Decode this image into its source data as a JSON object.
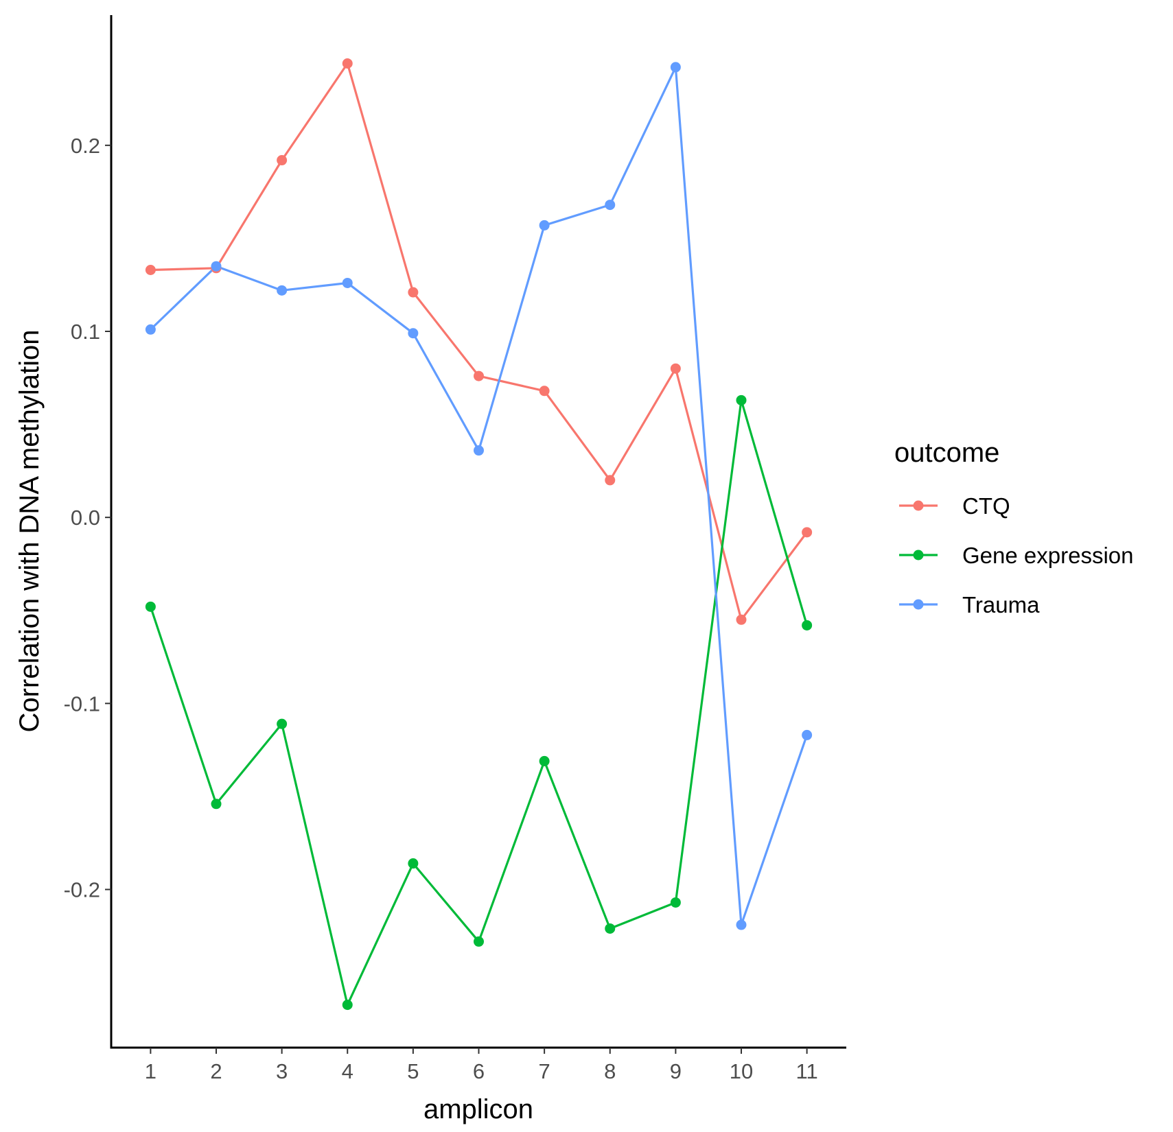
{
  "chart_data": {
    "type": "line",
    "xlabel": "amplicon",
    "ylabel": "Correlation with DNA methylation",
    "x": [
      1,
      2,
      3,
      4,
      5,
      6,
      7,
      8,
      9,
      10,
      11
    ],
    "x_tick_labels": [
      "1",
      "2",
      "3",
      "4",
      "5",
      "6",
      "7",
      "8",
      "9",
      "10",
      "11"
    ],
    "y_ticks": [
      -0.2,
      -0.1,
      0.0,
      0.1,
      0.2
    ],
    "y_tick_labels": [
      "-0.2",
      "-0.1",
      "0.0",
      "0.1",
      "0.2"
    ],
    "xlim": [
      0.4,
      11.6
    ],
    "ylim": [
      -0.285,
      0.27
    ],
    "grid": false,
    "legend": {
      "title": "outcome",
      "position": "right"
    },
    "series": [
      {
        "name": "CTQ",
        "color": "#F8766D",
        "values": [
          0.133,
          0.134,
          0.192,
          0.244,
          0.121,
          0.076,
          0.068,
          0.02,
          0.08,
          -0.055,
          -0.008
        ]
      },
      {
        "name": "Gene expression",
        "color": "#00BA38",
        "values": [
          -0.048,
          -0.154,
          -0.111,
          -0.262,
          -0.186,
          -0.228,
          -0.131,
          -0.221,
          -0.207,
          0.063,
          -0.058
        ]
      },
      {
        "name": "Trauma",
        "color": "#619CFF",
        "values": [
          0.101,
          0.135,
          0.122,
          0.126,
          0.099,
          0.036,
          0.157,
          0.168,
          0.242,
          -0.219,
          -0.117
        ]
      }
    ]
  }
}
